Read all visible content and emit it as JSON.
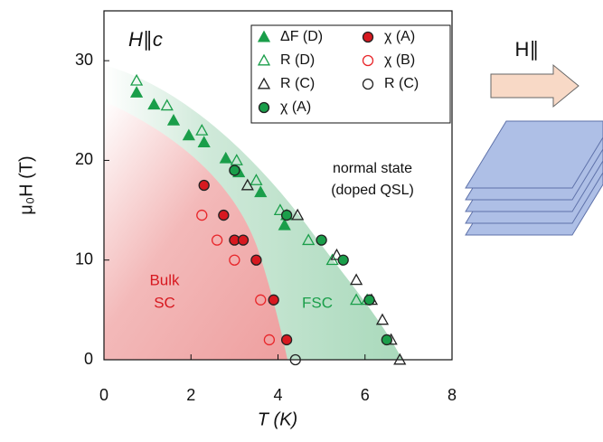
{
  "chart_data": {
    "type": "scatter",
    "title": "H∥c",
    "x_label": "T (K)",
    "y_label": "μ₀H (T)",
    "xlim": [
      0,
      8
    ],
    "ylim": [
      0,
      35
    ],
    "xticks": [
      0,
      2,
      4,
      6,
      8
    ],
    "yticks": [
      0,
      10,
      20,
      30
    ],
    "annotations": [
      "normal state",
      "(doped QSL)",
      "Bulk",
      "SC",
      "FSC",
      "H∥"
    ],
    "series": [
      {
        "name": "ΔF (D)",
        "marker": "triangle",
        "fill": "#1a9e4a",
        "color": "#1a9e4a",
        "x": [
          0.75,
          1.15,
          1.6,
          1.95,
          2.3,
          2.8,
          3.1,
          3.6,
          4.15,
          4.2
        ],
        "y": [
          26.8,
          25.6,
          24.0,
          22.5,
          21.8,
          20.2,
          18.8,
          16.8,
          13.5,
          14.5
        ]
      },
      {
        "name": "χ (A)",
        "marker": "circle",
        "fill": "#d71920",
        "color": "#222222",
        "x": [
          2.3,
          2.75,
          3.0,
          3.2,
          3.5,
          3.9,
          4.2
        ],
        "y": [
          17.5,
          14.5,
          12.0,
          12.0,
          10.0,
          6.0,
          2.0
        ]
      },
      {
        "name": "R (D)",
        "marker": "triangle",
        "fill": "none",
        "color": "#1a9e4a",
        "x": [
          0.75,
          1.45,
          2.25,
          3.05,
          3.5,
          4.05,
          4.7,
          5.25,
          5.8,
          6.05
        ],
        "y": [
          28.0,
          25.5,
          23.0,
          20.0,
          18.0,
          15.0,
          12.0,
          10.0,
          6.0,
          6.0
        ]
      },
      {
        "name": "χ (B)",
        "marker": "circle",
        "fill": "none",
        "color": "#e8262a",
        "x": [
          2.25,
          2.6,
          3.0,
          3.6,
          3.8
        ],
        "y": [
          14.5,
          12.0,
          10.0,
          6.0,
          2.0
        ]
      },
      {
        "name": "R (C)",
        "marker": "triangle",
        "fill": "none",
        "color": "#222222",
        "x": [
          3.3,
          4.45,
          5.35,
          5.8,
          6.15,
          6.4,
          6.6,
          6.8
        ],
        "y": [
          17.5,
          14.5,
          10.5,
          8.0,
          6.0,
          4.0,
          2.0,
          0.0
        ]
      },
      {
        "name": "R (C)",
        "marker": "circle",
        "fill": "none",
        "color": "#222222",
        "x": [
          4.4
        ],
        "y": [
          0.0
        ]
      },
      {
        "name": "χ (A)",
        "marker": "circle",
        "fill": "#1a9e4a",
        "color": "#222222",
        "x": [
          3.0,
          4.2,
          5.0,
          5.5,
          6.1,
          6.5
        ],
        "y": [
          19.0,
          14.5,
          12.0,
          10.0,
          6.0,
          2.0
        ]
      }
    ]
  }
}
